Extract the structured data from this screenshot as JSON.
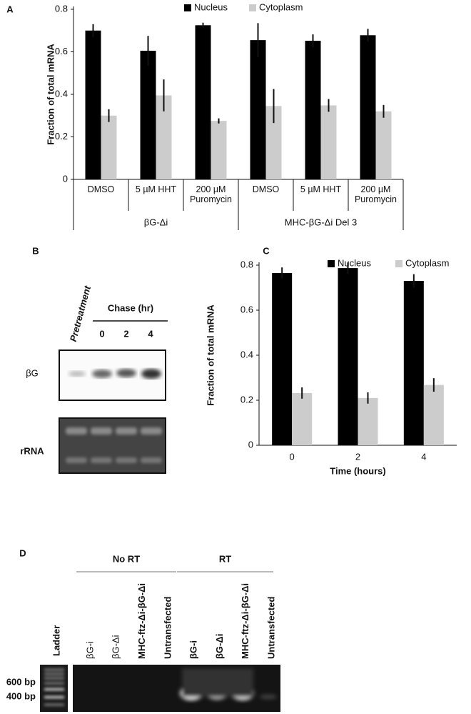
{
  "chart_data": [
    {
      "type": "bar",
      "panel_label": "A",
      "ylabel": "Fraction of total mRNA",
      "categories": [
        "DMSO",
        "5 µM HHT",
        "200 µM Puromycin",
        "DMSO",
        "5 µM HHT",
        "200 µM Puromycin"
      ],
      "group_labels": [
        "βG-Δi",
        "MHC-βG-Δi Del 3"
      ],
      "series": [
        {
          "name": "Nucleus",
          "color": "#000000",
          "values": [
            0.7,
            0.605,
            0.725,
            0.655,
            0.652,
            0.678
          ],
          "errors": [
            0.03,
            0.07,
            0.012,
            0.08,
            0.03,
            0.03
          ]
        },
        {
          "name": "Cytoplasm",
          "color": "#cccccc",
          "values": [
            0.3,
            0.395,
            0.275,
            0.345,
            0.348,
            0.32
          ],
          "errors": [
            0.03,
            0.075,
            0.012,
            0.08,
            0.03,
            0.03
          ]
        }
      ],
      "ylim": [
        0,
        0.8
      ],
      "yticks": [
        0,
        0.2,
        0.4,
        0.6,
        0.8
      ]
    },
    {
      "type": "bar",
      "panel_label": "C",
      "ylabel": "Fraction of total mRNA",
      "xlabel": "Time (hours)",
      "categories": [
        "0",
        "2",
        "4"
      ],
      "series": [
        {
          "name": "Nucleus",
          "color": "#000000",
          "values": [
            0.765,
            0.787,
            0.73
          ],
          "errors": [
            0.025,
            0.025,
            0.03
          ]
        },
        {
          "name": "Cytoplasm",
          "color": "#cccccc",
          "values": [
            0.232,
            0.21,
            0.268
          ],
          "errors": [
            0.025,
            0.025,
            0.03
          ]
        }
      ],
      "ylim": [
        0,
        0.8
      ],
      "yticks": [
        0,
        0.2,
        0.4,
        0.6,
        0.8
      ]
    }
  ],
  "blot": {
    "panel_label": "B",
    "pretreatment_label": "Pretreatment",
    "chase_label": "Chase (hr)",
    "chase_times": [
      "0",
      "2",
      "4"
    ],
    "rows": [
      "βG",
      "rRNA"
    ]
  },
  "gel": {
    "panel_label": "D",
    "ladder_label": "Ladder",
    "markers": [
      "600 bp",
      "400 bp"
    ],
    "groups": [
      {
        "label": "No RT",
        "lanes": [
          "βG-i",
          "βG-Δi",
          "MHC-ftz-Δi-βG-Δi",
          "Untransfected"
        ]
      },
      {
        "label": "RT",
        "lanes": [
          "βG-i",
          "βG-Δi",
          "MHC-ftz-Δi-βG-Δi",
          "Untransfected"
        ]
      }
    ]
  }
}
